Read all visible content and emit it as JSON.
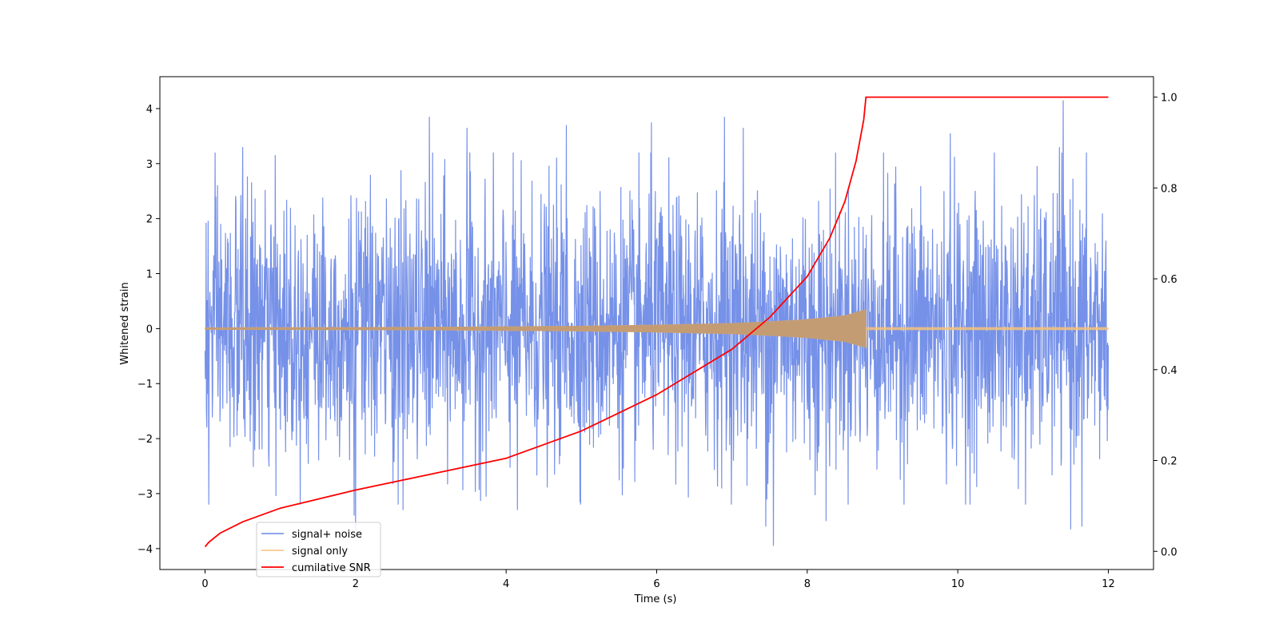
{
  "chart_data": {
    "type": "line",
    "title": "",
    "xlabel": "Time (s)",
    "ylabel": "Whitened strain",
    "ylabel_right": "",
    "xlim": [
      -0.6,
      12.6
    ],
    "ylim": [
      -4.38,
      4.58
    ],
    "ylim_right": [
      -0.04,
      1.045
    ],
    "x_ticks": [
      0,
      2,
      4,
      6,
      8,
      10,
      12
    ],
    "x_tick_labels": [
      "0",
      "2",
      "4",
      "6",
      "8",
      "10",
      "12"
    ],
    "y_ticks": [
      -4,
      -3,
      -2,
      -1,
      0,
      1,
      2,
      3,
      4
    ],
    "y_tick_labels": [
      "−4",
      "−3",
      "−2",
      "−1",
      "0",
      "1",
      "2",
      "3",
      "4"
    ],
    "y_right_ticks": [
      0.0,
      0.2,
      0.4,
      0.6,
      0.8,
      1.0
    ],
    "y_right_tick_labels": [
      "0.0",
      "0.2",
      "0.4",
      "0.6",
      "0.8",
      "1.0"
    ],
    "grid": false,
    "legend_position": "lower-left",
    "legend": [
      {
        "label": "signal+ noise",
        "color": "#6a88e6"
      },
      {
        "label": "signal only",
        "color": "#f5c27a"
      },
      {
        "label": "cumilative SNR",
        "color": "#ff0000"
      }
    ],
    "series": [
      {
        "name": "signal+ noise",
        "axis": "left",
        "color": "#6a88e6",
        "x_range": [
          0,
          12
        ],
        "typical_range": [
          -1.9,
          1.9
        ],
        "peak_events": [
          {
            "x": 0.5,
            "y": 3.3
          },
          {
            "x": 1.98,
            "y": 3.35
          },
          {
            "x": 2.63,
            "y": 3.75
          },
          {
            "x": 2.98,
            "y": 3.85
          },
          {
            "x": 3.48,
            "y": 3.65
          },
          {
            "x": 4.8,
            "y": 3.7
          },
          {
            "x": 5.93,
            "y": 3.75
          },
          {
            "x": 6.9,
            "y": 3.85
          },
          {
            "x": 7.15,
            "y": 3.65
          },
          {
            "x": 9.9,
            "y": 3.55
          },
          {
            "x": 11.4,
            "y": 4.15
          },
          {
            "x": 11.35,
            "y": 3.3
          },
          {
            "x": 1.98,
            "y": -3.4
          },
          {
            "x": 2.0,
            "y": -3.8
          },
          {
            "x": 2.63,
            "y": -3.3
          },
          {
            "x": 4.15,
            "y": -3.3
          },
          {
            "x": 7.45,
            "y": -3.6
          },
          {
            "x": 7.55,
            "y": -3.95
          },
          {
            "x": 8.25,
            "y": -3.5
          },
          {
            "x": 11.5,
            "y": -3.65
          },
          {
            "x": 11.65,
            "y": -3.6
          },
          {
            "x": 0.05,
            "y": -3.2
          },
          {
            "x": 10.9,
            "y": -3.2
          }
        ]
      },
      {
        "name": "signal only",
        "axis": "left",
        "color": "#f5c27a",
        "x_range": [
          0,
          12
        ],
        "chirp_end_x": 8.78,
        "envelope": [
          {
            "x": 0,
            "a": 0.02
          },
          {
            "x": 3,
            "a": 0.03
          },
          {
            "x": 5,
            "a": 0.05
          },
          {
            "x": 6,
            "a": 0.07
          },
          {
            "x": 7,
            "a": 0.1
          },
          {
            "x": 7.5,
            "a": 0.13
          },
          {
            "x": 8,
            "a": 0.17
          },
          {
            "x": 8.5,
            "a": 0.24
          },
          {
            "x": 8.78,
            "a": 0.35
          }
        ]
      },
      {
        "name": "cumilative SNR",
        "axis": "right",
        "color": "#ff0000",
        "points": [
          {
            "x": 0,
            "y": 0.01
          },
          {
            "x": 0.05,
            "y": 0.02
          },
          {
            "x": 0.2,
            "y": 0.04
          },
          {
            "x": 0.5,
            "y": 0.065
          },
          {
            "x": 1,
            "y": 0.095
          },
          {
            "x": 2,
            "y": 0.135
          },
          {
            "x": 3,
            "y": 0.17
          },
          {
            "x": 4,
            "y": 0.205
          },
          {
            "x": 5,
            "y": 0.265
          },
          {
            "x": 6,
            "y": 0.345
          },
          {
            "x": 7,
            "y": 0.445
          },
          {
            "x": 7.5,
            "y": 0.515
          },
          {
            "x": 8,
            "y": 0.605
          },
          {
            "x": 8.3,
            "y": 0.69
          },
          {
            "x": 8.5,
            "y": 0.77
          },
          {
            "x": 8.65,
            "y": 0.86
          },
          {
            "x": 8.75,
            "y": 0.95
          },
          {
            "x": 8.78,
            "y": 1.0
          },
          {
            "x": 12,
            "y": 1.0
          }
        ]
      }
    ]
  }
}
